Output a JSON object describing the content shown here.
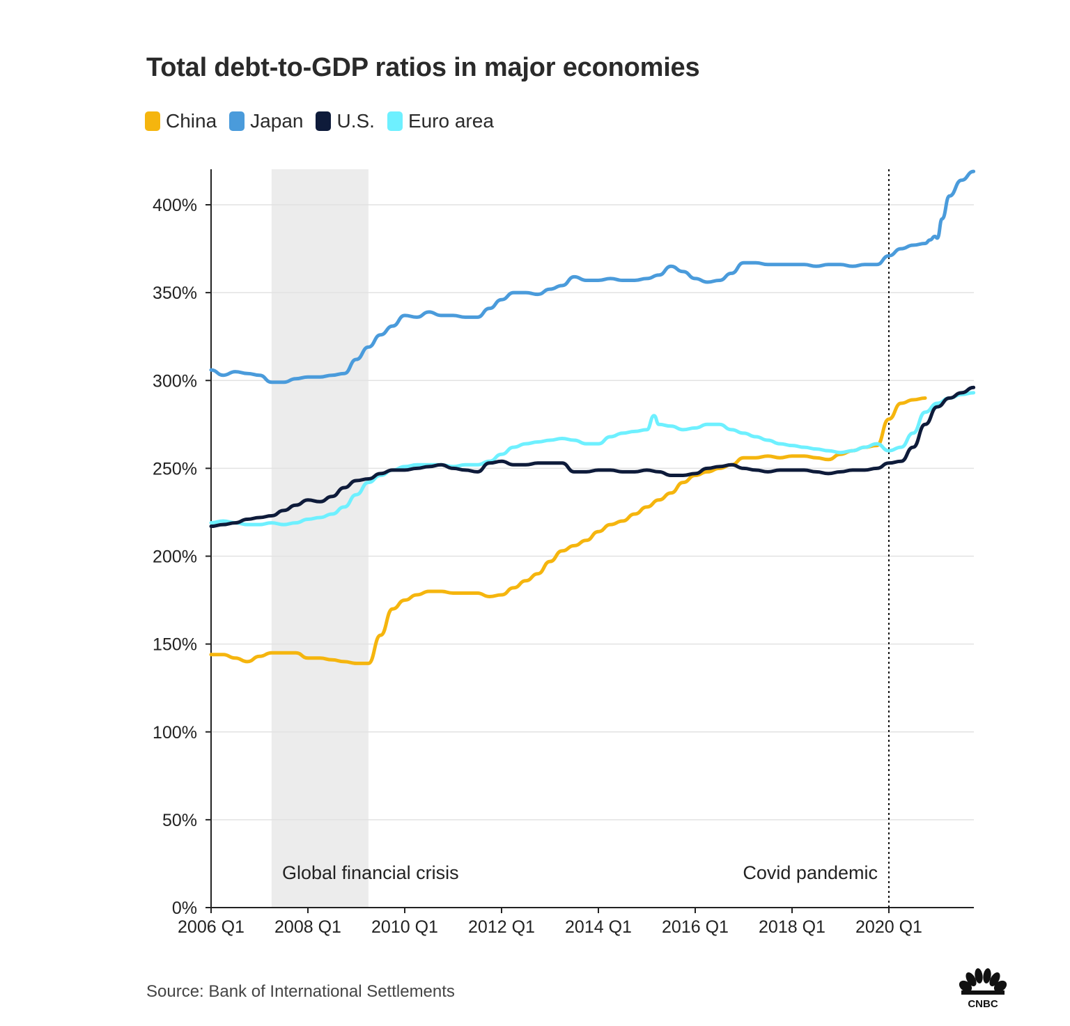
{
  "title": "Total debt-to-GDP ratios in major economies",
  "source": "Source: Bank of International Settlements",
  "logo_text": "CNBC",
  "legend": [
    {
      "label": "China",
      "color": "#F5B50E"
    },
    {
      "label": "Japan",
      "color": "#4A9BDB"
    },
    {
      "label": "U.S.",
      "color": "#0E1B3A"
    },
    {
      "label": "Euro area",
      "color": "#6EF0FF"
    }
  ],
  "chart_data": {
    "type": "line",
    "ylim": [
      0,
      420
    ],
    "xlim": [
      2006.0,
      2021.75
    ],
    "yticks": [
      0,
      50,
      100,
      150,
      200,
      250,
      300,
      350,
      400
    ],
    "ytick_labels": [
      "0%",
      "50%",
      "100%",
      "150%",
      "200%",
      "250%",
      "300%",
      "350%",
      "400%"
    ],
    "xticks": [
      2006,
      2008,
      2010,
      2012,
      2014,
      2016,
      2018,
      2020
    ],
    "xtick_labels": [
      "2006 Q1",
      "2008 Q1",
      "2010 Q1",
      "2012 Q1",
      "2014 Q1",
      "2016 Q1",
      "2018 Q1",
      "2020 Q1"
    ],
    "grid": "horizontal",
    "legend_position": "top-left",
    "annotations": [
      {
        "type": "shaded_region",
        "x_start": 2007.25,
        "x_end": 2009.25,
        "label": "Global financial crisis"
      },
      {
        "type": "vertical_dotted_line",
        "x": 2020.0,
        "label": "Covid pandemic"
      }
    ],
    "series": [
      {
        "name": "China",
        "color": "#F5B50E",
        "points": [
          [
            2006.0,
            144
          ],
          [
            2006.25,
            144
          ],
          [
            2006.5,
            142
          ],
          [
            2006.75,
            140
          ],
          [
            2007.0,
            143
          ],
          [
            2007.25,
            145
          ],
          [
            2007.5,
            145
          ],
          [
            2007.75,
            145
          ],
          [
            2008.0,
            142
          ],
          [
            2008.25,
            142
          ],
          [
            2008.5,
            141
          ],
          [
            2008.75,
            140
          ],
          [
            2009.0,
            139
          ],
          [
            2009.25,
            139
          ],
          [
            2009.5,
            155
          ],
          [
            2009.75,
            170
          ],
          [
            2010.0,
            175
          ],
          [
            2010.25,
            178
          ],
          [
            2010.5,
            180
          ],
          [
            2010.75,
            180
          ],
          [
            2011.0,
            179
          ],
          [
            2011.25,
            179
          ],
          [
            2011.5,
            179
          ],
          [
            2011.75,
            177
          ],
          [
            2012.0,
            178
          ],
          [
            2012.25,
            182
          ],
          [
            2012.5,
            186
          ],
          [
            2012.75,
            190
          ],
          [
            2013.0,
            197
          ],
          [
            2013.25,
            203
          ],
          [
            2013.5,
            206
          ],
          [
            2013.75,
            209
          ],
          [
            2014.0,
            214
          ],
          [
            2014.25,
            218
          ],
          [
            2014.5,
            220
          ],
          [
            2014.75,
            224
          ],
          [
            2015.0,
            228
          ],
          [
            2015.25,
            232
          ],
          [
            2015.5,
            236
          ],
          [
            2015.75,
            242
          ],
          [
            2016.0,
            246
          ],
          [
            2016.25,
            248
          ],
          [
            2016.5,
            250
          ],
          [
            2016.75,
            252
          ],
          [
            2017.0,
            256
          ],
          [
            2017.25,
            256
          ],
          [
            2017.5,
            257
          ],
          [
            2017.75,
            256
          ],
          [
            2018.0,
            257
          ],
          [
            2018.25,
            257
          ],
          [
            2018.5,
            256
          ],
          [
            2018.75,
            255
          ],
          [
            2019.0,
            258
          ],
          [
            2019.25,
            260
          ],
          [
            2019.5,
            262
          ],
          [
            2019.75,
            263
          ],
          [
            2020.0,
            278
          ],
          [
            2020.25,
            287
          ],
          [
            2020.5,
            289
          ],
          [
            2020.75,
            290
          ]
        ]
      },
      {
        "name": "Japan",
        "color": "#4A9BDB",
        "points": [
          [
            2006.0,
            306
          ],
          [
            2006.25,
            303
          ],
          [
            2006.5,
            305
          ],
          [
            2006.75,
            304
          ],
          [
            2007.0,
            303
          ],
          [
            2007.25,
            299
          ],
          [
            2007.5,
            299
          ],
          [
            2007.75,
            301
          ],
          [
            2008.0,
            302
          ],
          [
            2008.25,
            302
          ],
          [
            2008.5,
            303
          ],
          [
            2008.75,
            304
          ],
          [
            2009.0,
            312
          ],
          [
            2009.25,
            319
          ],
          [
            2009.5,
            326
          ],
          [
            2009.75,
            331
          ],
          [
            2010.0,
            337
          ],
          [
            2010.25,
            336
          ],
          [
            2010.5,
            339
          ],
          [
            2010.75,
            337
          ],
          [
            2011.0,
            337
          ],
          [
            2011.25,
            336
          ],
          [
            2011.5,
            336
          ],
          [
            2011.75,
            341
          ],
          [
            2012.0,
            346
          ],
          [
            2012.25,
            350
          ],
          [
            2012.5,
            350
          ],
          [
            2012.75,
            349
          ],
          [
            2013.0,
            352
          ],
          [
            2013.25,
            354
          ],
          [
            2013.5,
            359
          ],
          [
            2013.75,
            357
          ],
          [
            2014.0,
            357
          ],
          [
            2014.25,
            358
          ],
          [
            2014.5,
            357
          ],
          [
            2014.75,
            357
          ],
          [
            2015.0,
            358
          ],
          [
            2015.25,
            360
          ],
          [
            2015.5,
            365
          ],
          [
            2015.75,
            362
          ],
          [
            2016.0,
            358
          ],
          [
            2016.25,
            356
          ],
          [
            2016.5,
            357
          ],
          [
            2016.75,
            361
          ],
          [
            2017.0,
            367
          ],
          [
            2017.25,
            367
          ],
          [
            2017.5,
            366
          ],
          [
            2017.75,
            366
          ],
          [
            2018.0,
            366
          ],
          [
            2018.25,
            366
          ],
          [
            2018.5,
            365
          ],
          [
            2018.75,
            366
          ],
          [
            2019.0,
            366
          ],
          [
            2019.25,
            365
          ],
          [
            2019.5,
            366
          ],
          [
            2019.75,
            366
          ],
          [
            2020.0,
            371
          ],
          [
            2020.25,
            375
          ],
          [
            2020.5,
            377
          ],
          [
            2020.75,
            378
          ],
          [
            2020.85,
            380
          ],
          [
            2020.95,
            382
          ],
          [
            2021.0,
            381
          ],
          [
            2021.1,
            392
          ],
          [
            2021.25,
            405
          ],
          [
            2021.5,
            414
          ],
          [
            2021.75,
            419
          ]
        ]
      },
      {
        "name": "U.S.",
        "color": "#0E1B3A",
        "points": [
          [
            2006.0,
            217
          ],
          [
            2006.25,
            218
          ],
          [
            2006.5,
            219
          ],
          [
            2006.75,
            221
          ],
          [
            2007.0,
            222
          ],
          [
            2007.25,
            223
          ],
          [
            2007.5,
            226
          ],
          [
            2007.75,
            229
          ],
          [
            2008.0,
            232
          ],
          [
            2008.25,
            231
          ],
          [
            2008.5,
            234
          ],
          [
            2008.75,
            239
          ],
          [
            2009.0,
            243
          ],
          [
            2009.25,
            244
          ],
          [
            2009.5,
            247
          ],
          [
            2009.75,
            249
          ],
          [
            2010.0,
            249
          ],
          [
            2010.25,
            250
          ],
          [
            2010.5,
            251
          ],
          [
            2010.75,
            252
          ],
          [
            2011.0,
            250
          ],
          [
            2011.25,
            249
          ],
          [
            2011.5,
            248
          ],
          [
            2011.75,
            253
          ],
          [
            2012.0,
            254
          ],
          [
            2012.25,
            252
          ],
          [
            2012.5,
            252
          ],
          [
            2012.75,
            253
          ],
          [
            2013.0,
            253
          ],
          [
            2013.25,
            253
          ],
          [
            2013.5,
            248
          ],
          [
            2013.75,
            248
          ],
          [
            2014.0,
            249
          ],
          [
            2014.25,
            249
          ],
          [
            2014.5,
            248
          ],
          [
            2014.75,
            248
          ],
          [
            2015.0,
            249
          ],
          [
            2015.25,
            248
          ],
          [
            2015.5,
            246
          ],
          [
            2015.75,
            246
          ],
          [
            2016.0,
            247
          ],
          [
            2016.25,
            250
          ],
          [
            2016.5,
            251
          ],
          [
            2016.75,
            252
          ],
          [
            2017.0,
            250
          ],
          [
            2017.25,
            249
          ],
          [
            2017.5,
            248
          ],
          [
            2017.75,
            249
          ],
          [
            2018.0,
            249
          ],
          [
            2018.25,
            249
          ],
          [
            2018.5,
            248
          ],
          [
            2018.75,
            247
          ],
          [
            2019.0,
            248
          ],
          [
            2019.25,
            249
          ],
          [
            2019.5,
            249
          ],
          [
            2019.75,
            250
          ],
          [
            2020.0,
            253
          ],
          [
            2020.25,
            254
          ],
          [
            2020.5,
            262
          ],
          [
            2020.75,
            275
          ],
          [
            2021.0,
            285
          ],
          [
            2021.25,
            290
          ],
          [
            2021.5,
            293
          ],
          [
            2021.75,
            296
          ]
        ]
      },
      {
        "name": "Euro area",
        "color": "#6EF0FF",
        "points": [
          [
            2006.0,
            219
          ],
          [
            2006.25,
            220
          ],
          [
            2006.5,
            219
          ],
          [
            2006.75,
            218
          ],
          [
            2007.0,
            218
          ],
          [
            2007.25,
            219
          ],
          [
            2007.5,
            218
          ],
          [
            2007.75,
            219
          ],
          [
            2008.0,
            221
          ],
          [
            2008.25,
            222
          ],
          [
            2008.5,
            224
          ],
          [
            2008.75,
            228
          ],
          [
            2009.0,
            235
          ],
          [
            2009.25,
            242
          ],
          [
            2009.5,
            246
          ],
          [
            2009.75,
            249
          ],
          [
            2010.0,
            251
          ],
          [
            2010.25,
            252
          ],
          [
            2010.5,
            252
          ],
          [
            2010.75,
            252
          ],
          [
            2011.0,
            251
          ],
          [
            2011.25,
            252
          ],
          [
            2011.5,
            252
          ],
          [
            2011.75,
            254
          ],
          [
            2012.0,
            258
          ],
          [
            2012.25,
            262
          ],
          [
            2012.5,
            264
          ],
          [
            2012.75,
            265
          ],
          [
            2013.0,
            266
          ],
          [
            2013.25,
            267
          ],
          [
            2013.5,
            266
          ],
          [
            2013.75,
            264
          ],
          [
            2014.0,
            264
          ],
          [
            2014.25,
            268
          ],
          [
            2014.5,
            270
          ],
          [
            2014.75,
            271
          ],
          [
            2015.0,
            272
          ],
          [
            2015.15,
            280
          ],
          [
            2015.25,
            275
          ],
          [
            2015.5,
            274
          ],
          [
            2015.75,
            272
          ],
          [
            2016.0,
            273
          ],
          [
            2016.25,
            275
          ],
          [
            2016.5,
            275
          ],
          [
            2016.75,
            272
          ],
          [
            2017.0,
            270
          ],
          [
            2017.25,
            268
          ],
          [
            2017.5,
            266
          ],
          [
            2017.75,
            264
          ],
          [
            2018.0,
            263
          ],
          [
            2018.25,
            262
          ],
          [
            2018.5,
            261
          ],
          [
            2018.75,
            260
          ],
          [
            2019.0,
            259
          ],
          [
            2019.25,
            260
          ],
          [
            2019.5,
            262
          ],
          [
            2019.75,
            264
          ],
          [
            2020.0,
            260
          ],
          [
            2020.25,
            262
          ],
          [
            2020.5,
            270
          ],
          [
            2020.75,
            282
          ],
          [
            2021.0,
            287
          ],
          [
            2021.25,
            290
          ],
          [
            2021.5,
            292
          ],
          [
            2021.75,
            293
          ]
        ]
      }
    ]
  }
}
